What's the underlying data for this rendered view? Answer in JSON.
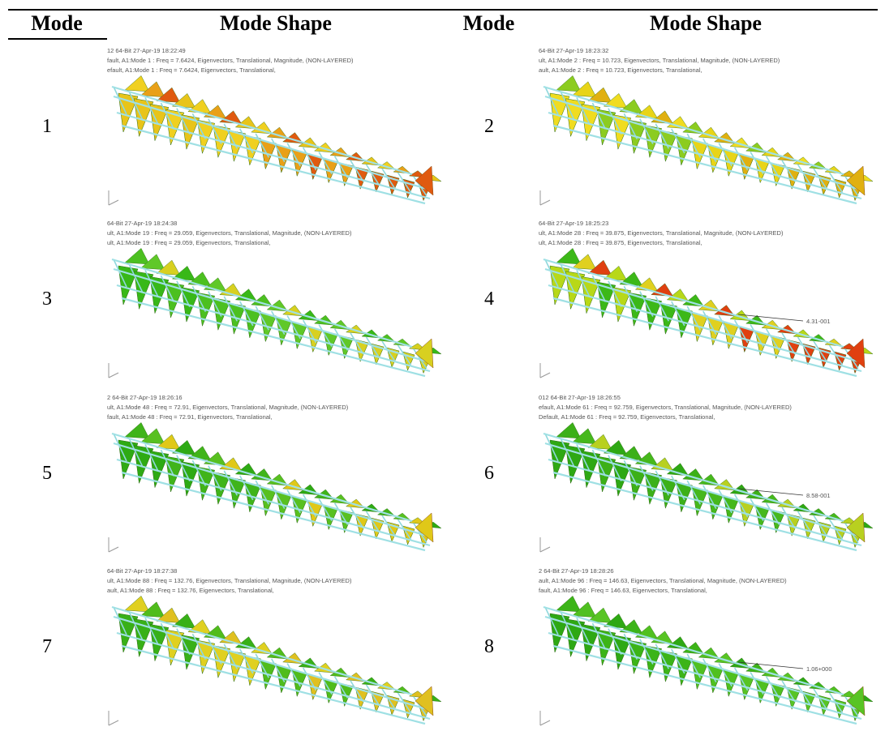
{
  "table": {
    "header": [
      "Mode",
      "Mode Shape",
      "Mode",
      "Mode Shape"
    ],
    "rows": [
      [
        {
          "mode": "1",
          "caption": [
            "12 64-Bit 27-Apr-19 18:22:49",
            "fault, A1:Mode 1 : Freq = 7.6424, Eigenvectors, Translational, Magnitude, (NON-LAYERED)",
            "efault, A1:Mode 1 : Freq = 7.6424, Eigenvectors, Translational,"
          ]
        },
        {
          "mode": "2",
          "caption": [
            "64-Bit 27-Apr-19 18:23:32",
            "ult, A1:Mode 2 : Freq = 10.723, Eigenvectors, Translational, Magnitude, (NON-LAYERED)",
            "ault, A1:Mode 2 : Freq = 10.723, Eigenvectors, Translational,"
          ]
        }
      ],
      [
        {
          "mode": "3",
          "caption": [
            "64-Bit 27-Apr-19 18:24:38",
            "ult, A1:Mode 19 : Freq = 29.059, Eigenvectors, Translational, Magnitude, (NON-LAYERED)",
            "ult, A1:Mode 19 : Freq = 29.059, Eigenvectors, Translational,"
          ]
        },
        {
          "mode": "4",
          "caption": [
            "64-Bit 27-Apr-19 18:25:23",
            "ult, A1:Mode 28 : Freq = 39.875, Eigenvectors, Translational, Magnitude, (NON-LAYERED)",
            "ult, A1:Mode 28 : Freq = 39.875, Eigenvectors, Translational,"
          ],
          "annotation": "4.31-001"
        }
      ],
      [
        {
          "mode": "5",
          "caption": [
            "2 64-Bit 27-Apr-19 18:26:16",
            "ult, A1:Mode 48 : Freq = 72.91, Eigenvectors, Translational, Magnitude, (NON-LAYERED)",
            "fault, A1:Mode 48 : Freq = 72.91, Eigenvectors, Translational,"
          ]
        },
        {
          "mode": "6",
          "caption": [
            "012 64-Bit 27-Apr-19 18:26:55",
            "efault, A1:Mode 61 : Freq = 92.759, Eigenvectors, Translational, Magnitude, (NON-LAYERED)",
            "Default, A1:Mode 61 : Freq = 92.759, Eigenvectors, Translational,"
          ],
          "annotation": "8.58-001"
        }
      ],
      [
        {
          "mode": "7",
          "caption": [
            "64-Bit 27-Apr-19 18:27:38",
            "ult, A1:Mode 88 : Freq = 132.76, Eigenvectors, Translational, Magnitude, (NON-LAYERED)",
            "ault, A1:Mode 88 : Freq = 132.76, Eigenvectors, Translational,"
          ]
        },
        {
          "mode": "8",
          "caption": [
            "2 64-Bit 27-Apr-19 18:28:26",
            "ault, A1:Mode 96 : Freq = 146.63, Eigenvectors, Translational, Magnitude, (NON-LAYERED)",
            "fault, A1:Mode 96 : Freq = 146.63, Eigenvectors, Translational,"
          ],
          "annotation": "1.06+000"
        }
      ]
    ]
  }
}
